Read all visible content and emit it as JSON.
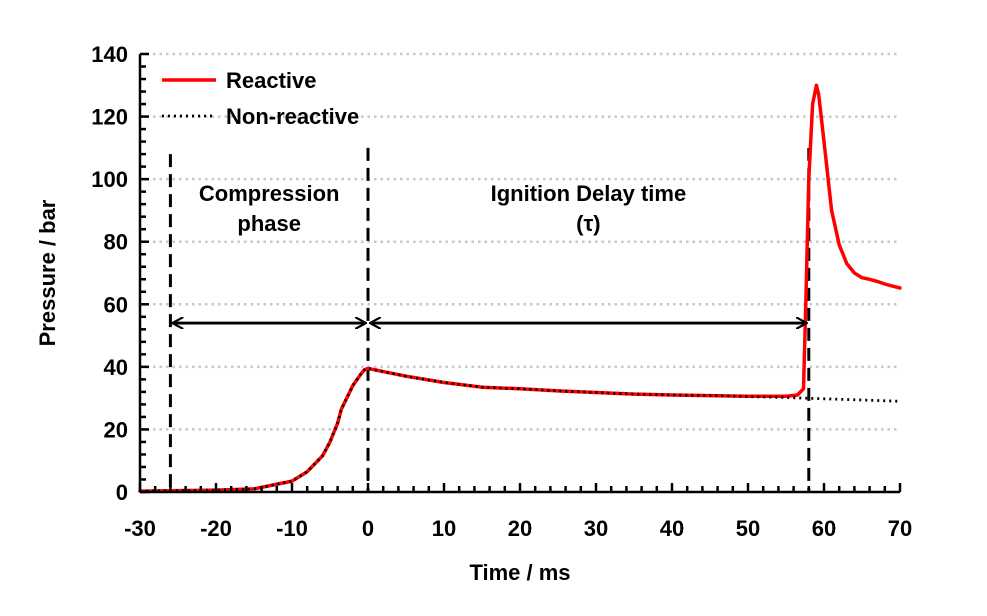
{
  "chart_data": {
    "type": "line",
    "title": "",
    "xlabel": "Time / ms",
    "ylabel": "Pressure / bar",
    "xlim": [
      -30,
      70
    ],
    "ylim": [
      0,
      140
    ],
    "xticks": [
      -30,
      -20,
      -10,
      0,
      10,
      20,
      30,
      40,
      50,
      60,
      70
    ],
    "yticks": [
      0,
      20,
      40,
      60,
      80,
      100,
      120,
      140
    ],
    "grid": "horizontal dotted",
    "legend_position": "top-left",
    "series": [
      {
        "name": "Reactive",
        "color": "#ff0000",
        "style": "solid",
        "x": [
          -30,
          -20,
          -15,
          -10,
          -8,
          -6,
          -5,
          -4,
          -3.5,
          -3,
          -2,
          -1,
          -0.5,
          0,
          2,
          5,
          10,
          15,
          20,
          25,
          30,
          35,
          40,
          45,
          50,
          55,
          56.5,
          57.3,
          57.6,
          58.0,
          58.5,
          59.0,
          59.3,
          60.0,
          61.0,
          62.0,
          63.0,
          64.0,
          65.0,
          66.0,
          67.0,
          68.0,
          69.0,
          70.0
        ],
        "y": [
          0.3,
          0.6,
          1.0,
          3.5,
          6.5,
          11.5,
          16.0,
          22.0,
          26.5,
          29.0,
          34.0,
          37.5,
          39.0,
          39.5,
          38.5,
          37.0,
          35.0,
          33.5,
          33.0,
          32.3,
          31.8,
          31.3,
          31.0,
          30.8,
          30.6,
          30.6,
          31.0,
          33.0,
          60.0,
          100.0,
          124.0,
          130.0,
          127.0,
          112.0,
          90.0,
          79.0,
          73.0,
          70.0,
          68.5,
          68.0,
          67.3,
          66.5,
          65.8,
          65.2
        ]
      },
      {
        "name": "Non-reactive",
        "color": "#000000",
        "style": "dotted",
        "x": [
          -30,
          -20,
          -15,
          -10,
          -8,
          -6,
          -5,
          -4,
          -3.5,
          -3,
          -2,
          -1,
          -0.5,
          0,
          2,
          5,
          10,
          15,
          20,
          25,
          30,
          35,
          40,
          45,
          50,
          55,
          60,
          65,
          70
        ],
        "y": [
          0.3,
          0.6,
          1.0,
          3.5,
          6.5,
          11.5,
          16.0,
          22.0,
          26.5,
          29.0,
          34.0,
          37.5,
          39.0,
          39.5,
          38.5,
          37.0,
          35.0,
          33.5,
          33.0,
          32.3,
          31.8,
          31.3,
          31.0,
          30.8,
          30.5,
          30.2,
          29.8,
          29.4,
          29.0
        ]
      }
    ],
    "markers": [
      {
        "x": -26,
        "y_top": 108
      },
      {
        "x": 0,
        "y_top": 110
      },
      {
        "x": 58,
        "y_top": 110
      }
    ],
    "arrows": [
      {
        "from": -26,
        "to": 0,
        "y": 54
      },
      {
        "from": 0,
        "to": 58,
        "y": 54
      }
    ],
    "annotations": [
      {
        "lines": [
          "Compression",
          "phase"
        ],
        "x": -13,
        "y": 93
      },
      {
        "lines": [
          "Ignition Delay time",
          "(τ)"
        ],
        "x": 29,
        "y": 93
      }
    ]
  }
}
